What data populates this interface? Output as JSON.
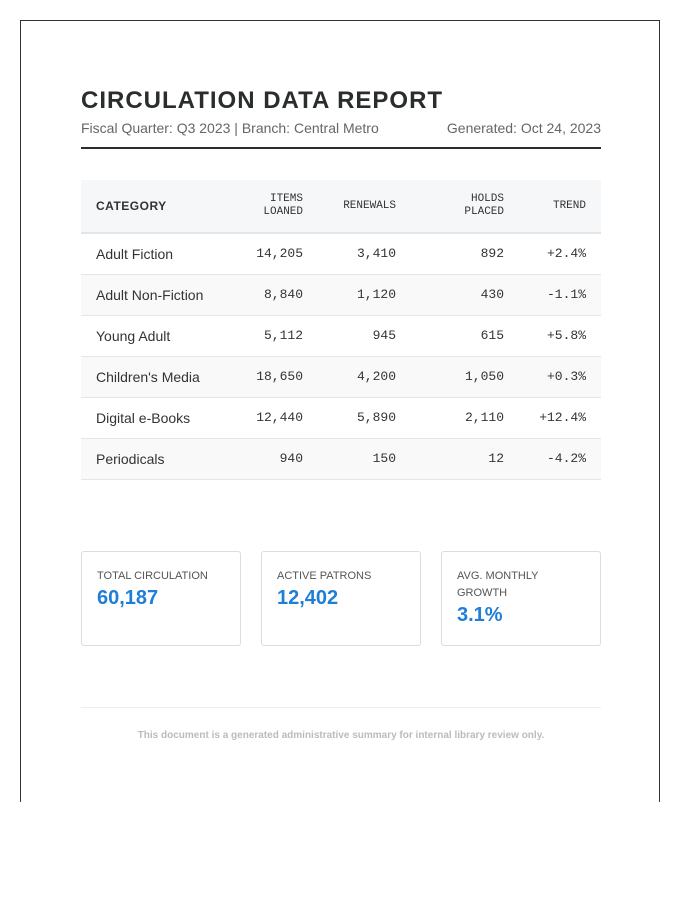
{
  "title": "CIRCULATION DATA REPORT",
  "subtitle": "Fiscal Quarter: Q3 2023 | Branch: Central Metro",
  "generated": "Generated: Oct 24, 2023",
  "table": {
    "headers": [
      "CATEGORY",
      "ITEMS LOANED",
      "RENEWALS",
      "HOLDS PLACED",
      "TREND"
    ],
    "rows": [
      [
        "Adult Fiction",
        "14,205",
        "3,410",
        "892",
        "+2.4%"
      ],
      [
        "Adult Non-Fiction",
        "8,840",
        "1,120",
        "430",
        "-1.1%"
      ],
      [
        "Young Adult",
        "5,112",
        "945",
        "615",
        "+5.8%"
      ],
      [
        "Children's Media",
        "18,650",
        "4,200",
        "1,050",
        "+0.3%"
      ],
      [
        "Digital e-Books",
        "12,440",
        "5,890",
        "2,110",
        "+12.4%"
      ],
      [
        "Periodicals",
        "940",
        "150",
        "12",
        "-4.2%"
      ]
    ]
  },
  "cards": [
    {
      "label": "TOTAL CIRCULATION",
      "value": "60,187"
    },
    {
      "label": "ACTIVE PATRONS",
      "value": "12,402"
    },
    {
      "label": "AVG. MONTHLY GROWTH",
      "value": "3.1%"
    }
  ],
  "footer": "This document is a generated administrative summary for internal library review only."
}
